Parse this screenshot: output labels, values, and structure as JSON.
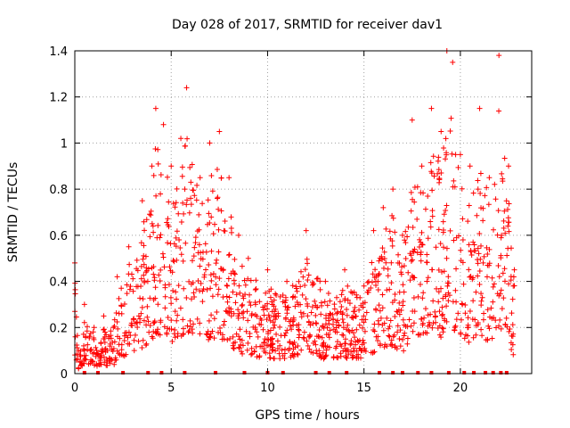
{
  "chart_data": {
    "type": "scatter",
    "title": "Day 028 of 2017, SRMTID for receiver dav1",
    "xlabel": "GPS time / hours",
    "ylabel": "SRMTID / TECUs",
    "xlim": [
      0,
      23.7
    ],
    "ylim": [
      0,
      1.4
    ],
    "xticks": [
      {
        "value": 0,
        "label": "0"
      },
      {
        "value": 5,
        "label": "5"
      },
      {
        "value": 10,
        "label": "10"
      },
      {
        "value": 15,
        "label": "15"
      },
      {
        "value": 20,
        "label": "20"
      }
    ],
    "yticks": [
      {
        "value": 0,
        "label": "0"
      },
      {
        "value": 0.2,
        "label": "0.2"
      },
      {
        "value": 0.4,
        "label": "0.4"
      },
      {
        "value": 0.6,
        "label": "0.6"
      },
      {
        "value": 0.8,
        "label": "0.8"
      },
      {
        "value": 1.0,
        "label": "1"
      },
      {
        "value": 1.2,
        "label": "1.2"
      },
      {
        "value": 1.4,
        "label": "1.4"
      }
    ],
    "grid": true,
    "marker": "+",
    "color": "#ff0000",
    "series": [
      {
        "name": "dav1",
        "envelope_points": [
          {
            "x": 0.0,
            "y": 0.48
          },
          {
            "x": 0.2,
            "y": 0.1
          },
          {
            "x": 0.5,
            "y": 0.3
          },
          {
            "x": 1.0,
            "y": 0.2
          },
          {
            "x": 1.5,
            "y": 0.25
          },
          {
            "x": 2.0,
            "y": 0.2
          },
          {
            "x": 2.2,
            "y": 0.42
          },
          {
            "x": 2.8,
            "y": 0.55
          },
          {
            "x": 3.5,
            "y": 0.75
          },
          {
            "x": 4.0,
            "y": 0.9
          },
          {
            "x": 4.2,
            "y": 1.15
          },
          {
            "x": 4.6,
            "y": 1.08
          },
          {
            "x": 5.0,
            "y": 0.9
          },
          {
            "x": 5.5,
            "y": 1.02
          },
          {
            "x": 5.8,
            "y": 1.24
          },
          {
            "x": 6.5,
            "y": 0.85
          },
          {
            "x": 7.0,
            "y": 1.0
          },
          {
            "x": 7.5,
            "y": 1.05
          },
          {
            "x": 8.0,
            "y": 0.85
          },
          {
            "x": 8.5,
            "y": 0.6
          },
          {
            "x": 9.0,
            "y": 0.5
          },
          {
            "x": 10.0,
            "y": 0.45
          },
          {
            "x": 11.0,
            "y": 0.4
          },
          {
            "x": 12.0,
            "y": 0.62
          },
          {
            "x": 13.0,
            "y": 0.4
          },
          {
            "x": 14.0,
            "y": 0.45
          },
          {
            "x": 15.0,
            "y": 0.38
          },
          {
            "x": 15.5,
            "y": 0.62
          },
          {
            "x": 16.0,
            "y": 0.72
          },
          {
            "x": 16.5,
            "y": 0.8
          },
          {
            "x": 17.0,
            "y": 0.6
          },
          {
            "x": 17.5,
            "y": 1.1
          },
          {
            "x": 18.0,
            "y": 0.9
          },
          {
            "x": 18.5,
            "y": 1.15
          },
          {
            "x": 19.0,
            "y": 1.05
          },
          {
            "x": 19.3,
            "y": 1.4
          },
          {
            "x": 19.6,
            "y": 1.35
          },
          {
            "x": 20.0,
            "y": 0.95
          },
          {
            "x": 20.5,
            "y": 0.9
          },
          {
            "x": 21.0,
            "y": 1.15
          },
          {
            "x": 21.5,
            "y": 0.85
          },
          {
            "x": 22.0,
            "y": 1.38
          },
          {
            "x": 22.5,
            "y": 0.9
          },
          {
            "x": 22.8,
            "y": 0.45
          }
        ],
        "baseline_marks_x": [
          0.5,
          1.2,
          2.5,
          3.8,
          4.5,
          5.7,
          7.3,
          8.8,
          10.0,
          10.8,
          12.5,
          13.2,
          14.1,
          15.8,
          16.5,
          17.0,
          17.8,
          18.5,
          19.4,
          20.2,
          20.7,
          21.3,
          21.7,
          22.1,
          22.4
        ]
      }
    ]
  }
}
